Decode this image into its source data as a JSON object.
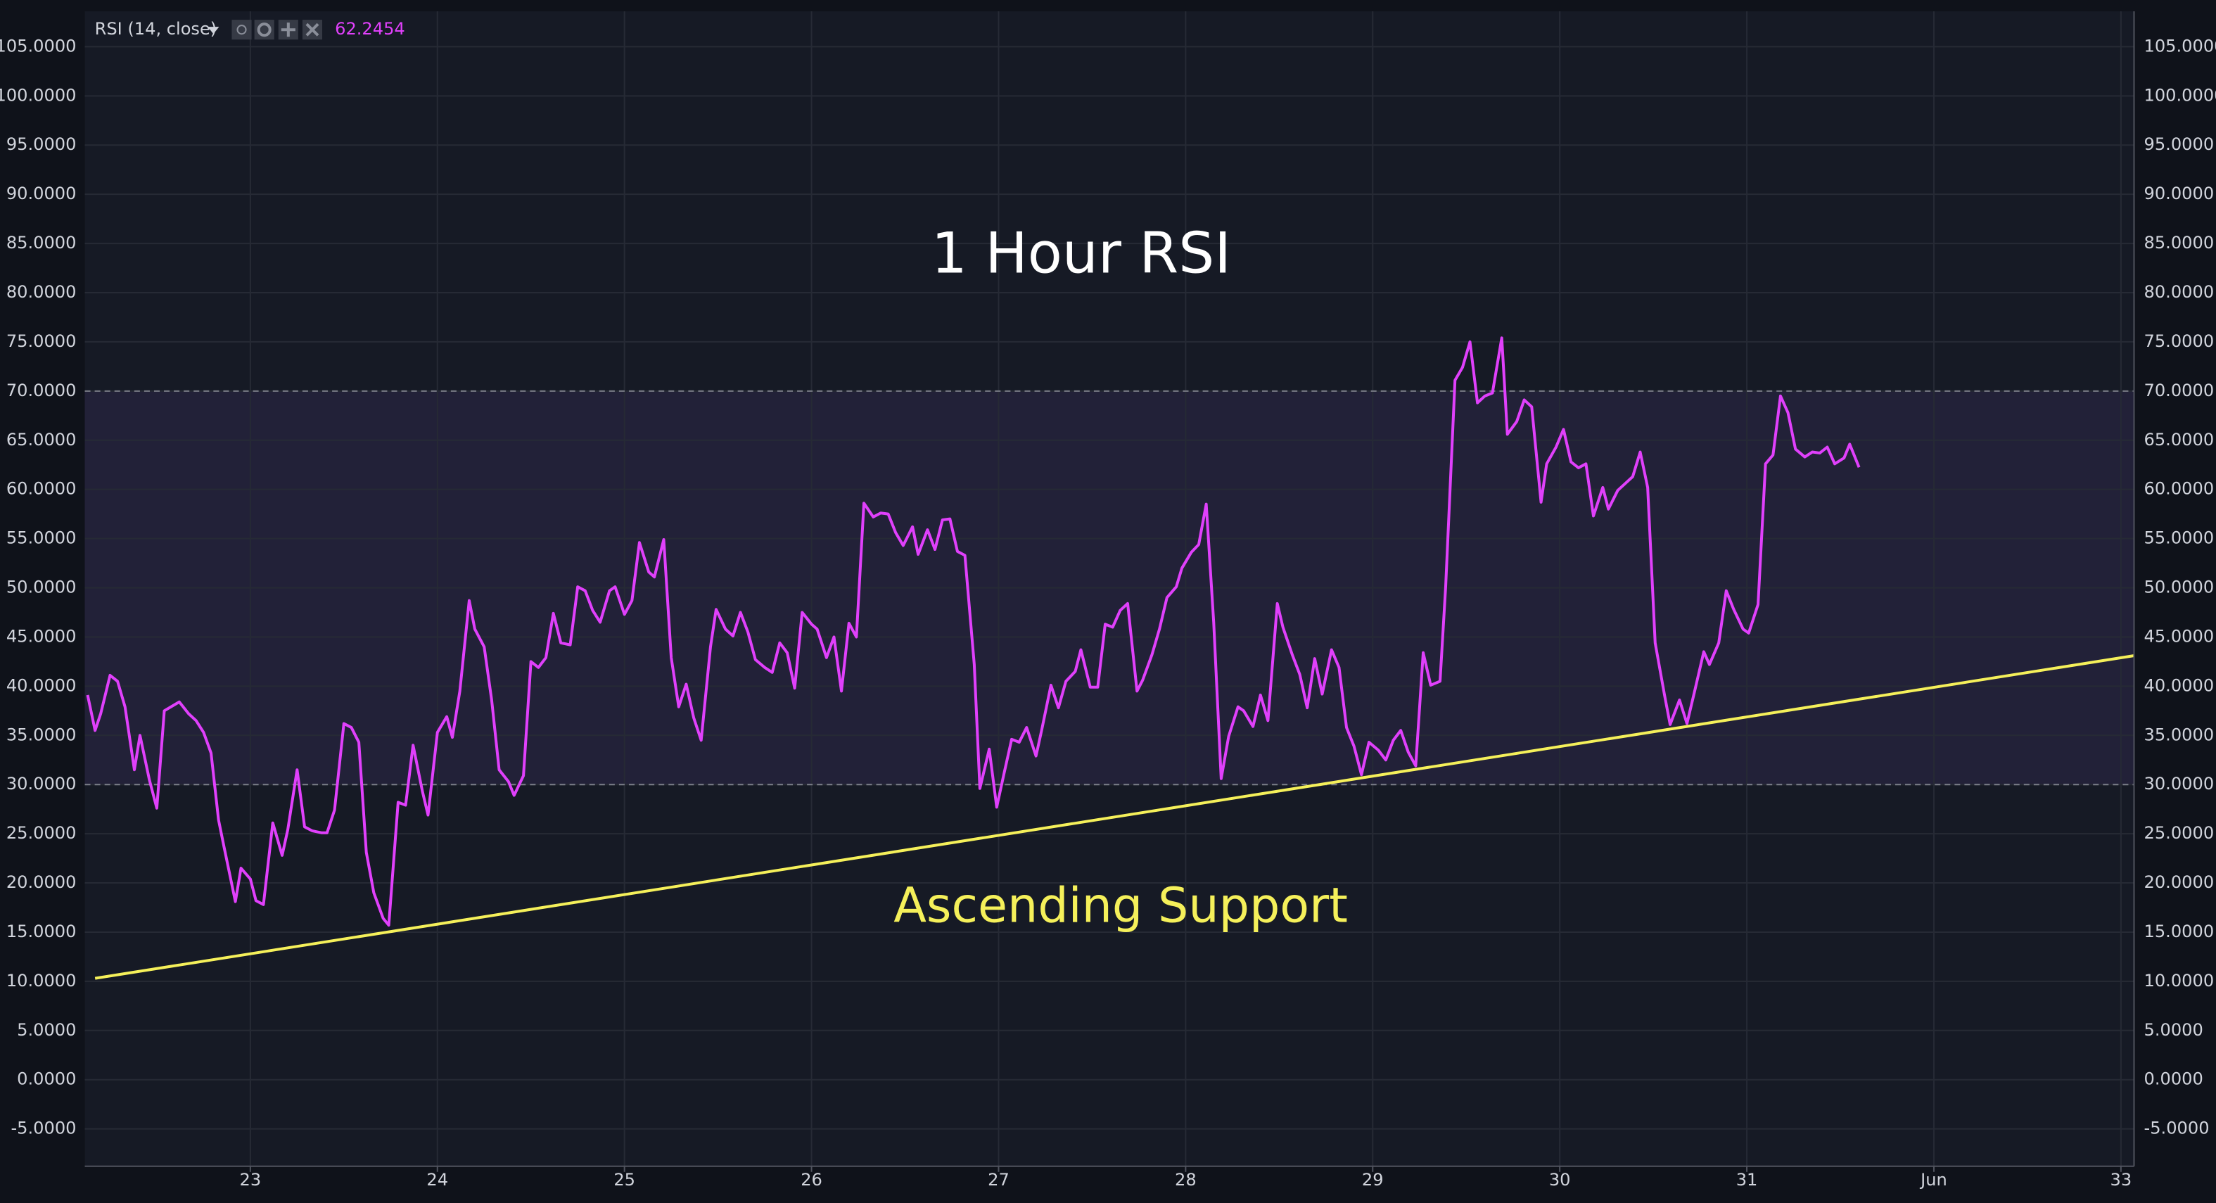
{
  "chart_data": {
    "type": "line",
    "indicator": "RSI (14, close)",
    "last_value": "62.2454",
    "title": "1 Hour RSI",
    "band": [
      30,
      70
    ],
    "grid": true,
    "xlim": [
      22.115,
      33.07
    ],
    "ylim": [
      -8.8,
      108.6
    ],
    "xticks": [
      23,
      24,
      25,
      26,
      27,
      28,
      29,
      30,
      31,
      {
        "value": 32,
        "label": "Jun"
      },
      33
    ],
    "yticks": [
      {
        "value": 105,
        "label": "105.0000"
      },
      {
        "value": 100,
        "label": "100.0000"
      },
      {
        "value": 95,
        "label": "95.0000"
      },
      {
        "value": 90,
        "label": "90.0000"
      },
      {
        "value": 85,
        "label": "85.0000"
      },
      {
        "value": 80,
        "label": "80.0000"
      },
      {
        "value": 75,
        "label": "75.0000"
      },
      {
        "value": 70,
        "label": "70.0000"
      },
      {
        "value": 65,
        "label": "65.0000"
      },
      {
        "value": 60,
        "label": "60.0000"
      },
      {
        "value": 55,
        "label": "55.0000"
      },
      {
        "value": 50,
        "label": "50.0000"
      },
      {
        "value": 45,
        "label": "45.0000"
      },
      {
        "value": 40,
        "label": "40.0000"
      },
      {
        "value": 35,
        "label": "35.0000"
      },
      {
        "value": 30,
        "label": "30.0000"
      },
      {
        "value": 25,
        "label": "25.0000"
      },
      {
        "value": 20,
        "label": "20.0000"
      },
      {
        "value": 15,
        "label": "15.0000"
      },
      {
        "value": 10,
        "label": "10.0000"
      },
      {
        "value": 5,
        "label": "5.0000"
      },
      {
        "value": 0,
        "label": "0.0000"
      },
      {
        "value": -5,
        "label": "-5.0000"
      }
    ],
    "series": [
      {
        "name": "RSI",
        "color": "#e040fb",
        "x": [
          22.13,
          22.17,
          22.2,
          22.25,
          22.29,
          22.33,
          22.38,
          22.41,
          22.46,
          22.5,
          22.54,
          22.62,
          22.67,
          22.71,
          22.75,
          22.79,
          22.83,
          22.86,
          22.92,
          22.95,
          23.0,
          23.03,
          23.07,
          23.12,
          23.17,
          23.2,
          23.25,
          23.29,
          23.33,
          23.38,
          23.41,
          23.45,
          23.5,
          23.54,
          23.58,
          23.62,
          23.66,
          23.71,
          23.74,
          23.79,
          23.83,
          23.87,
          23.92,
          23.95,
          24.0,
          24.05,
          24.08,
          24.12,
          24.17,
          24.2,
          24.25,
          24.29,
          24.33,
          24.38,
          24.41,
          24.46,
          24.5,
          24.54,
          24.58,
          24.62,
          24.66,
          24.71,
          24.75,
          24.79,
          24.83,
          24.87,
          24.92,
          24.95,
          25.0,
          25.04,
          25.08,
          25.13,
          25.16,
          25.21,
          25.25,
          25.29,
          25.33,
          25.37,
          25.41,
          25.46,
          25.49,
          25.54,
          25.58,
          25.62,
          25.66,
          25.7,
          25.75,
          25.79,
          25.83,
          25.87,
          25.91,
          25.95,
          26.0,
          26.03,
          26.08,
          26.12,
          26.16,
          26.2,
          26.24,
          26.28,
          26.33,
          26.37,
          26.41,
          26.45,
          26.49,
          26.54,
          26.57,
          26.62,
          26.66,
          26.7,
          26.74,
          26.78,
          26.82,
          26.87,
          26.9,
          26.95,
          26.99,
          27.03,
          27.07,
          27.11,
          27.15,
          27.2,
          27.23,
          27.28,
          27.32,
          27.36,
          27.41,
          27.44,
          27.49,
          27.53,
          27.57,
          27.61,
          27.65,
          27.69,
          27.74,
          27.77,
          27.82,
          27.86,
          27.9,
          27.95,
          27.98,
          28.03,
          28.07,
          28.11,
          28.15,
          28.19,
          28.23,
          28.28,
          28.31,
          28.36,
          28.4,
          28.44,
          28.49,
          28.52,
          28.57,
          28.61,
          28.65,
          28.69,
          28.73,
          28.78,
          28.82,
          28.86,
          28.9,
          28.94,
          28.98,
          29.03,
          29.07,
          29.11,
          29.15,
          29.19,
          29.23,
          29.27,
          29.31,
          29.36,
          29.39,
          29.44,
          29.48,
          29.52,
          29.56,
          29.6,
          29.64,
          29.69,
          29.72,
          29.77,
          29.81,
          29.85,
          29.9,
          29.93,
          29.98,
          30.02,
          30.06,
          30.1,
          30.14,
          30.18,
          30.23,
          30.26,
          30.31,
          30.35,
          30.39,
          30.43,
          30.47,
          30.51,
          30.56,
          30.59,
          30.64,
          30.68,
          30.72,
          30.77,
          30.8,
          30.85,
          30.89,
          30.93,
          30.98,
          31.01,
          31.06,
          31.1,
          31.14,
          31.18,
          31.22,
          31.26,
          31.31,
          31.35,
          31.39,
          31.43,
          31.47,
          31.52,
          31.55,
          31.6
        ],
        "values": [
          39.1,
          35.5,
          37.2,
          41.1,
          40.5,
          37.9,
          31.5,
          35,
          30.5,
          27.6,
          37.5,
          38.4,
          37.2,
          36.5,
          35.3,
          33.2,
          26.4,
          23.6,
          18.1,
          21.5,
          20.4,
          18.2,
          17.8,
          26.1,
          22.8,
          25.4,
          31.5,
          25.7,
          25.3,
          25.1,
          25.1,
          27.4,
          36.2,
          35.8,
          34.3,
          23.1,
          19,
          16.4,
          15.7,
          28.2,
          27.9,
          34,
          29.3,
          26.9,
          35.3,
          36.9,
          34.8,
          39.5,
          48.7,
          45.8,
          44,
          38.6,
          31.5,
          30.3,
          28.9,
          30.9,
          42.5,
          41.9,
          42.9,
          47.4,
          44.4,
          44.2,
          50.1,
          49.7,
          47.7,
          46.5,
          49.7,
          50.1,
          47.3,
          48.7,
          54.6,
          51.6,
          51.1,
          54.9,
          42.9,
          37.9,
          40.2,
          36.8,
          34.5,
          44,
          47.8,
          45.8,
          45.1,
          47.5,
          45.5,
          42.7,
          41.9,
          41.4,
          44.4,
          43.4,
          39.8,
          47.5,
          46.3,
          45.8,
          42.9,
          45,
          39.5,
          46.4,
          45,
          58.6,
          57.2,
          57.6,
          57.5,
          55.6,
          54.3,
          56.2,
          53.4,
          55.9,
          53.9,
          56.9,
          57,
          53.7,
          53.3,
          42.2,
          29.6,
          33.6,
          27.7,
          31.2,
          34.6,
          34.3,
          35.8,
          32.9,
          35.5,
          40.1,
          37.8,
          40.5,
          41.5,
          43.7,
          39.9,
          39.9,
          46.3,
          46,
          47.7,
          48.4,
          39.5,
          40.6,
          43.2,
          45.8,
          49,
          50.1,
          52,
          53.6,
          54.4,
          58.5,
          46.5,
          30.6,
          34.9,
          37.9,
          37.5,
          35.9,
          39.1,
          36.5,
          48.4,
          46,
          43.2,
          41.2,
          37.8,
          42.8,
          39.2,
          43.7,
          41.9,
          35.8,
          33.9,
          31,
          34.3,
          33.5,
          32.5,
          34.5,
          35.5,
          33.3,
          31.9,
          43.4,
          40.1,
          40.5,
          50.1,
          71.1,
          72.4,
          75,
          68.8,
          69.5,
          69.8,
          75.4,
          65.6,
          66.9,
          69.1,
          68.4,
          58.7,
          62.6,
          64.3,
          66.1,
          62.8,
          62.2,
          62.6,
          57.3,
          60.2,
          58,
          59.9,
          60.6,
          61.3,
          63.8,
          60.2,
          44.4,
          39.1,
          36.1,
          38.6,
          36.2,
          39.4,
          43.5,
          42.2,
          44.4,
          49.7,
          47.8,
          45.8,
          45.4,
          48.3,
          62.6,
          63.5,
          69.5,
          67.8,
          64.1,
          63.3,
          63.8,
          63.7,
          64.3,
          62.6,
          63.2,
          64.6,
          62.2454
        ]
      },
      {
        "name": "Ascending Support",
        "color": "#f5f05a",
        "x": [
          22.17,
          33.07
        ],
        "values": [
          10.3,
          43.1
        ]
      }
    ]
  }
}
